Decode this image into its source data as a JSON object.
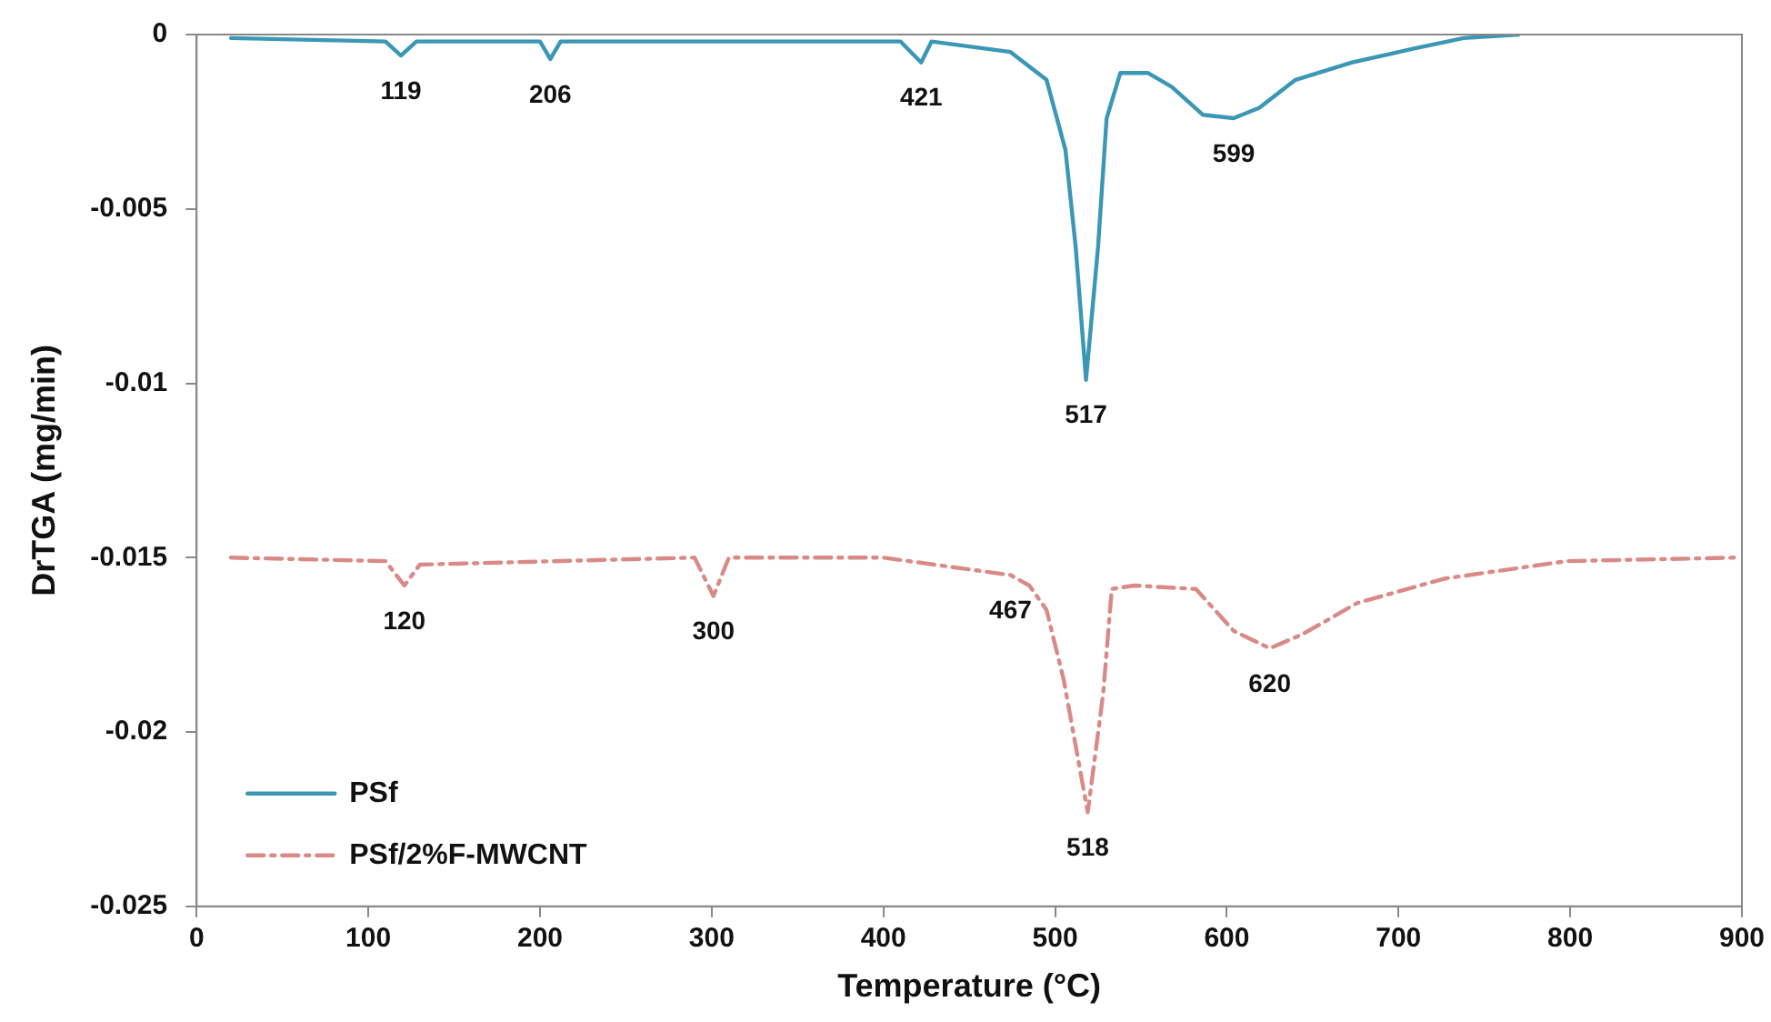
{
  "chart_data": {
    "type": "line",
    "xlabel": "Temperature (°C)",
    "ylabel": "DrTGA (mg/min)",
    "xlim": [
      0,
      900
    ],
    "xticks": [
      0,
      100,
      200,
      300,
      400,
      500,
      600,
      700,
      800,
      900
    ],
    "ylim": [
      -0.025,
      0
    ],
    "yticks": [
      -0.025,
      -0.02,
      -0.015,
      -0.01,
      -0.005,
      0
    ],
    "grid": false,
    "legend": "bottom left",
    "marker": "none",
    "series": [
      {
        "name": "PSf",
        "color": "#3a97b5",
        "line_style": "solid",
        "x": [
          20,
          110,
          119,
          128,
          200,
          206,
          212,
          300,
          410,
          422,
          428,
          474,
          495,
          506,
          512,
          518,
          525,
          530,
          538,
          554,
          568,
          586,
          604,
          619,
          640,
          673,
          709,
          738,
          770
        ],
        "values": [
          -0.0001,
          -0.0002,
          -0.0006,
          -0.0002,
          -0.0002,
          -0.0007,
          -0.0002,
          -0.0002,
          -0.0002,
          -0.0008,
          -0.0002,
          -0.0005,
          -0.0013,
          -0.0033,
          -0.0061,
          -0.0099,
          -0.0061,
          -0.0024,
          -0.0011,
          -0.0011,
          -0.0015,
          -0.0023,
          -0.0024,
          -0.0021,
          -0.0013,
          -0.0008,
          -0.0004,
          -0.0001,
          0
        ]
      },
      {
        "name": "PSf/2%F-MWCNT",
        "color": "#d98a86",
        "line_style": "dashdot",
        "x": [
          20,
          110,
          121,
          130,
          290,
          301,
          310,
          400,
          474,
          485,
          495,
          505,
          519,
          528,
          533,
          546,
          582,
          604,
          625,
          644,
          676,
          727,
          798,
          896
        ],
        "values": [
          -0.015,
          -0.0151,
          -0.0158,
          -0.0152,
          -0.015,
          -0.0161,
          -0.015,
          -0.015,
          -0.0155,
          -0.0158,
          -0.0165,
          -0.0185,
          -0.0223,
          -0.0189,
          -0.0159,
          -0.0158,
          -0.0159,
          -0.0171,
          -0.0176,
          -0.0172,
          -0.0163,
          -0.0156,
          -0.0151,
          -0.015
        ]
      }
    ],
    "annotations": [
      {
        "text": "119",
        "x": 119,
        "y": -0.0006
      },
      {
        "text": "206",
        "x": 206,
        "y": -0.0007
      },
      {
        "text": "421",
        "x": 422,
        "y": -0.0008
      },
      {
        "text": "517",
        "x": 518,
        "y": -0.0099
      },
      {
        "text": "599",
        "x": 604,
        "y": -0.0024
      },
      {
        "text": "120",
        "x": 121,
        "y": -0.0158
      },
      {
        "text": "300",
        "x": 301,
        "y": -0.0161
      },
      {
        "text": "467",
        "x": 474,
        "y": -0.0155
      },
      {
        "text": "620",
        "x": 625,
        "y": -0.0176
      },
      {
        "text": "518",
        "x": 519,
        "y": -0.0223
      }
    ]
  }
}
